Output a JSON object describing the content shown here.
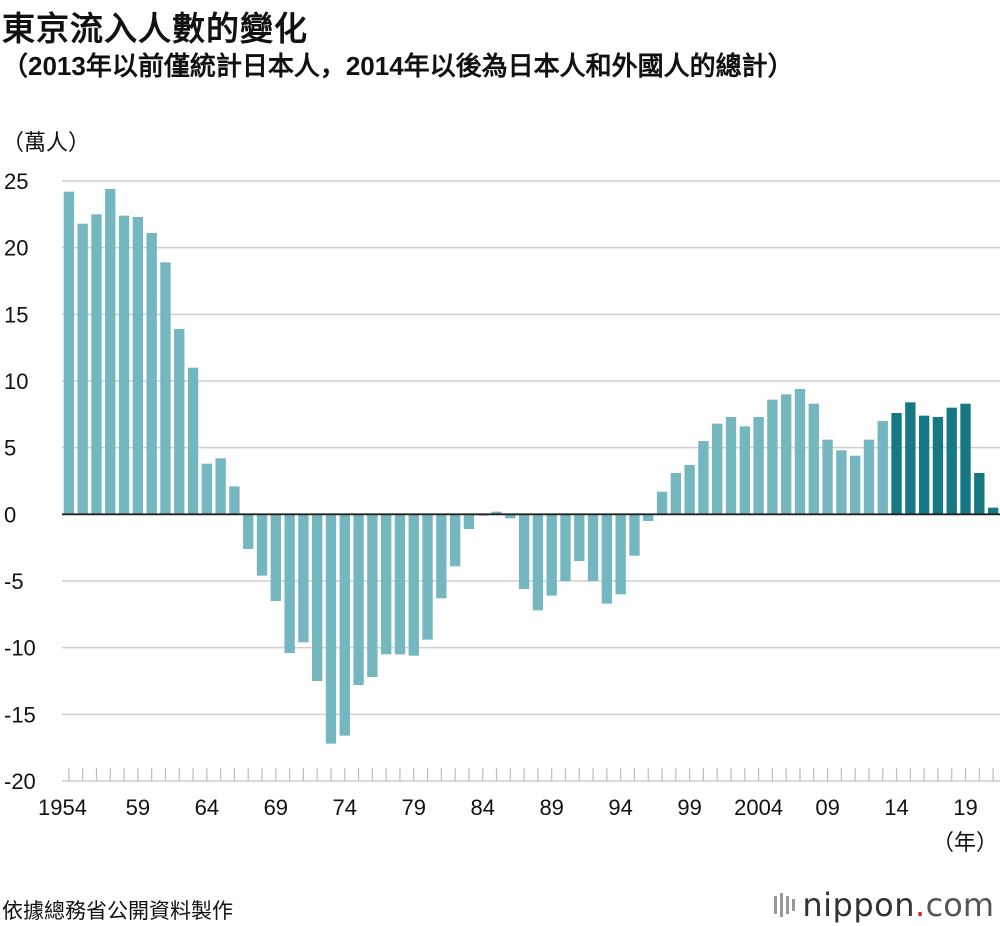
{
  "header": {
    "title": "東京流入人數的變化",
    "subtitle": "（2013年以前僅統計日本人，2014年以後為日本人和外國人的總計）"
  },
  "footer": {
    "source": "依據總務省公開資料製作",
    "brand_name": "nippon",
    "brand_dot": ".",
    "brand_tld": "com"
  },
  "colors": {
    "bar_light": "#74b7c0",
    "bar_dark": "#167785",
    "grid": "#cfcfcf",
    "axis": "#222222"
  },
  "chart_data": {
    "type": "bar",
    "title": "東京流入人數的變化",
    "subtitle": "（2013年以前僅統計日本人，2014年以後為日本人和外國人的總計）",
    "ylabel": "（萬人）",
    "xlabel": "（年）",
    "ylim": [
      -20,
      25
    ],
    "yticks": [
      25,
      20,
      15,
      10,
      5,
      0,
      -5,
      -10,
      -15,
      -20
    ],
    "ytick_labels": [
      "25",
      "20",
      "15",
      "10",
      "5",
      "0",
      "-5",
      "-10",
      "-15",
      "-20"
    ],
    "grid": true,
    "xtick_labels": [
      {
        "index": 0,
        "label": "1954"
      },
      {
        "index": 5,
        "label": "59"
      },
      {
        "index": 10,
        "label": "64"
      },
      {
        "index": 15,
        "label": "69"
      },
      {
        "index": 20,
        "label": "74"
      },
      {
        "index": 25,
        "label": "79"
      },
      {
        "index": 30,
        "label": "84"
      },
      {
        "index": 35,
        "label": "89"
      },
      {
        "index": 40,
        "label": "94"
      },
      {
        "index": 45,
        "label": "99"
      },
      {
        "index": 50,
        "label": "2004"
      },
      {
        "index": 55,
        "label": "09"
      },
      {
        "index": 60,
        "label": "14"
      },
      {
        "index": 65,
        "label": "19"
      }
    ],
    "categories": [
      1954,
      1955,
      1956,
      1957,
      1958,
      1959,
      1960,
      1961,
      1962,
      1963,
      1964,
      1965,
      1966,
      1967,
      1968,
      1969,
      1970,
      1971,
      1972,
      1973,
      1974,
      1975,
      1976,
      1977,
      1978,
      1979,
      1980,
      1981,
      1982,
      1983,
      1984,
      1985,
      1986,
      1987,
      1988,
      1989,
      1990,
      1991,
      1992,
      1993,
      1994,
      1995,
      1996,
      1997,
      1998,
      1999,
      2000,
      2001,
      2002,
      2003,
      2004,
      2005,
      2006,
      2007,
      2008,
      2009,
      2010,
      2011,
      2012,
      2013,
      2014,
      2015,
      2016,
      2017,
      2018,
      2019,
      2020,
      2021
    ],
    "series": [
      {
        "name": "日本人",
        "color": "#74b7c0",
        "values": [
          24.2,
          21.8,
          22.5,
          24.4,
          22.4,
          22.3,
          21.1,
          18.9,
          13.9,
          11.0,
          3.8,
          4.2,
          2.1,
          -2.6,
          -4.6,
          -6.5,
          -10.4,
          -9.6,
          -12.5,
          -17.2,
          -16.6,
          -12.8,
          -12.2,
          -10.5,
          -10.5,
          -10.6,
          -9.4,
          -6.3,
          -3.9,
          -1.1,
          -0.1,
          0.2,
          -0.3,
          -5.6,
          -7.2,
          -6.1,
          -5.0,
          -3.5,
          -5.0,
          -6.7,
          -6.0,
          -3.1,
          -0.5,
          1.7,
          3.1,
          3.7,
          5.5,
          6.8,
          7.3,
          6.6,
          7.3,
          8.6,
          9.0,
          9.4,
          8.3,
          5.6,
          4.8,
          4.4,
          5.6,
          7.0,
          null,
          null,
          null,
          null,
          null,
          null,
          null,
          null
        ]
      },
      {
        "name": "日本人和外國人",
        "color": "#167785",
        "values": [
          null,
          null,
          null,
          null,
          null,
          null,
          null,
          null,
          null,
          null,
          null,
          null,
          null,
          null,
          null,
          null,
          null,
          null,
          null,
          null,
          null,
          null,
          null,
          null,
          null,
          null,
          null,
          null,
          null,
          null,
          null,
          null,
          null,
          null,
          null,
          null,
          null,
          null,
          null,
          null,
          null,
          null,
          null,
          null,
          null,
          null,
          null,
          null,
          null,
          null,
          null,
          null,
          null,
          null,
          null,
          null,
          null,
          null,
          null,
          null,
          7.6,
          8.4,
          7.4,
          7.3,
          8.0,
          8.3,
          3.1,
          0.5
        ]
      }
    ]
  }
}
